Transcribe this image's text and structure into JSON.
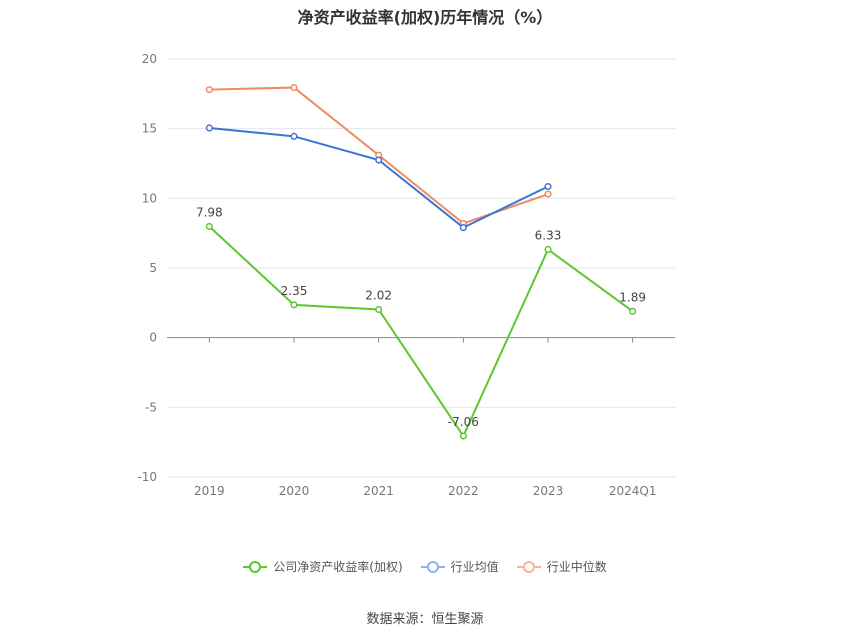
{
  "title": "净资产收益率(加权)历年情况（%）",
  "source": "数据来源：恒生聚源",
  "chart_data": {
    "type": "line",
    "categories": [
      "2019",
      "2020",
      "2021",
      "2022",
      "2023",
      "2024Q1"
    ],
    "ylim": [
      -10,
      20
    ],
    "yticks": [
      20,
      15,
      10,
      5,
      0,
      -5,
      -10
    ],
    "grid": true,
    "legend_position": "bottom",
    "series": [
      {
        "name": "公司净资产收益率(加权)",
        "color": "#5cc72e",
        "values": [
          7.98,
          2.35,
          2.02,
          -7.06,
          6.33,
          1.89
        ],
        "labels": true
      },
      {
        "name": "行业均值",
        "color": "#3a75d6",
        "values": [
          15.05,
          14.45,
          12.75,
          7.9,
          10.85,
          null
        ],
        "labels": false
      },
      {
        "name": "行业中位数",
        "color": "#f08a5d",
        "values": [
          17.8,
          17.95,
          13.1,
          8.2,
          10.3,
          null
        ],
        "labels": false
      }
    ]
  }
}
